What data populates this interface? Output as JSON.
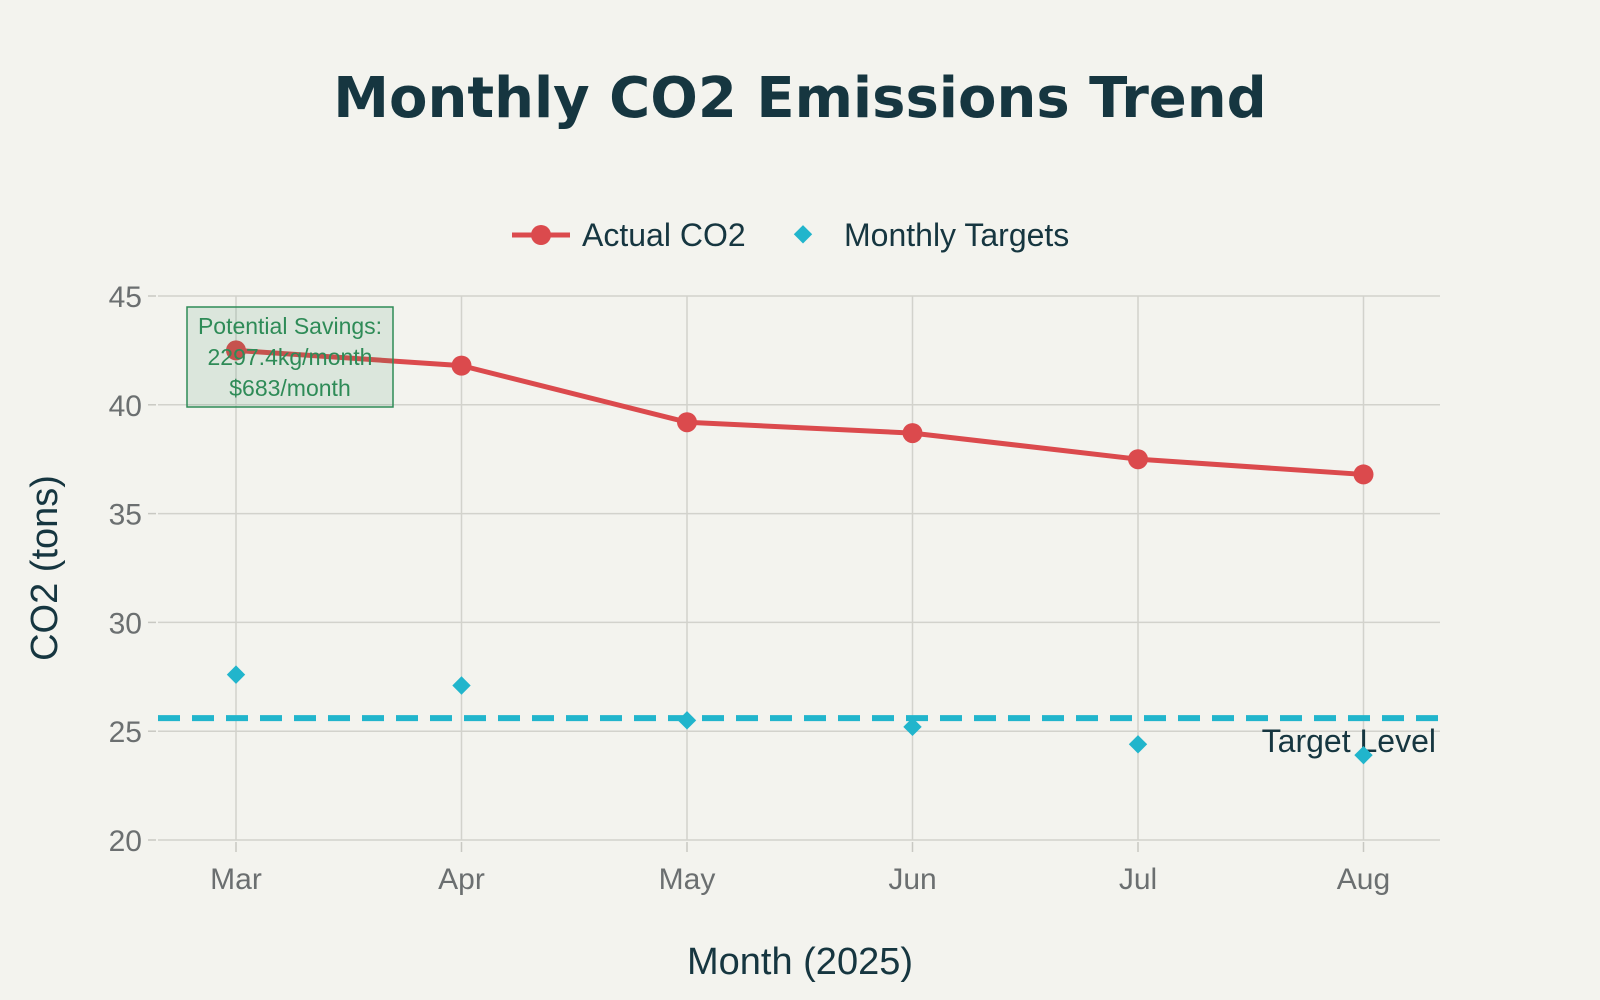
{
  "chart_data": {
    "type": "line",
    "title": "Monthly CO2 Emissions Trend",
    "xlabel": "Month (2025)",
    "ylabel": "CO2 (tons)",
    "categories": [
      "Mar",
      "Apr",
      "May",
      "Jun",
      "Jul",
      "Aug"
    ],
    "ylim": [
      20,
      45
    ],
    "yticks": [
      20,
      25,
      30,
      35,
      40,
      45
    ],
    "grid": true,
    "legend_position": "top-center",
    "series": [
      {
        "name": "Actual CO2",
        "style": "line+markers",
        "marker": "circle",
        "color": "#db4a4d",
        "values": [
          42.5,
          41.8,
          39.2,
          38.7,
          37.5,
          36.8
        ]
      },
      {
        "name": "Monthly Targets",
        "style": "markers",
        "marker": "diamond",
        "color": "#21b5cc",
        "values": [
          27.6,
          27.1,
          25.5,
          25.2,
          24.4,
          23.9
        ]
      }
    ],
    "reference_line": {
      "label": "Target Level",
      "value": 25.6,
      "style": "dashed",
      "color": "#21b5cc"
    },
    "annotation": {
      "lines": [
        "Potential Savings:",
        "2297.4kg/month",
        "$683/month"
      ],
      "color": "#2e8b57"
    }
  }
}
